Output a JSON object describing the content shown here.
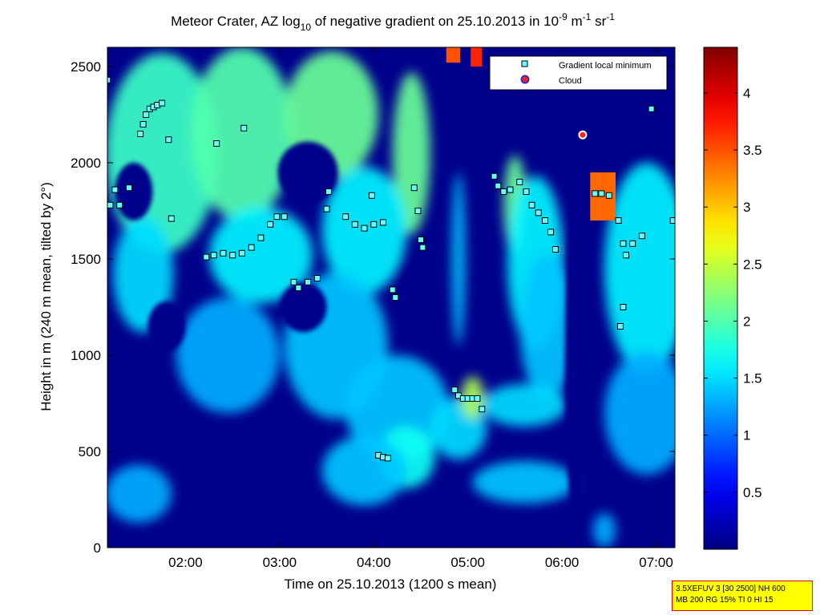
{
  "chart_data": {
    "type": "heatmap",
    "title": "Meteor Crater, AZ log10 of negative gradient on 25.10.2013 in 10^-9 m^-1 sr^-1",
    "title_parts": {
      "a": "Meteor Crater, AZ log",
      "sub": "10",
      "b": " of negative gradient on 25.10.2013 in 10",
      "sup1": "-9",
      "c": " m",
      "sup2": "-1",
      "d": " sr",
      "sup3": "-1"
    },
    "xlabel": "Time on 25.10.2013 (1200 s mean)",
    "ylabel": "Height in m (240 m mean, tilted by 2°)",
    "x_unit": "hour of day",
    "xlim": [
      1.17,
      7.2
    ],
    "ylim": [
      0,
      2600
    ],
    "x_ticks": [
      {
        "v": 2.0,
        "label": "02:00"
      },
      {
        "v": 3.0,
        "label": "03:00"
      },
      {
        "v": 4.0,
        "label": "04:00"
      },
      {
        "v": 5.0,
        "label": "05:00"
      },
      {
        "v": 6.0,
        "label": "06:00"
      },
      {
        "v": 7.0,
        "label": "07:00"
      }
    ],
    "y_ticks": [
      0,
      500,
      1000,
      1500,
      2000,
      2500
    ],
    "colorbar": {
      "range": [
        0,
        4.4
      ],
      "ticks": [
        0.5,
        1,
        1.5,
        2,
        2.5,
        3,
        3.5,
        4
      ],
      "colormap": "jet"
    },
    "background_value": 0.05,
    "field": [
      {
        "x": 1.75,
        "y": 2050,
        "rx": 0.6,
        "ry": 520,
        "v": 1.9
      },
      {
        "x": 2.6,
        "y": 2150,
        "rx": 0.55,
        "ry": 450,
        "v": 2.0
      },
      {
        "x": 3.55,
        "y": 2250,
        "rx": 0.5,
        "ry": 330,
        "v": 2.1
      },
      {
        "x": 4.4,
        "y": 2050,
        "rx": 0.2,
        "ry": 420,
        "v": 2.1
      },
      {
        "x": 1.55,
        "y": 1420,
        "rx": 0.32,
        "ry": 300,
        "v": 1.5
      },
      {
        "x": 2.8,
        "y": 1520,
        "rx": 0.55,
        "ry": 250,
        "v": 1.6
      },
      {
        "x": 3.9,
        "y": 1650,
        "rx": 0.45,
        "ry": 330,
        "v": 1.6
      },
      {
        "x": 2.45,
        "y": 1000,
        "rx": 0.55,
        "ry": 300,
        "v": 1.3
      },
      {
        "x": 3.6,
        "y": 1050,
        "rx": 0.55,
        "ry": 380,
        "v": 1.4
      },
      {
        "x": 4.25,
        "y": 720,
        "rx": 0.55,
        "ry": 280,
        "v": 1.4
      },
      {
        "x": 4.35,
        "y": 470,
        "rx": 0.3,
        "ry": 160,
        "v": 1.7
      },
      {
        "x": 4.9,
        "y": 620,
        "rx": 0.3,
        "ry": 160,
        "v": 1.5
      },
      {
        "x": 4.9,
        "y": 1500,
        "rx": 0.07,
        "ry": 450,
        "v": 1.4
      },
      {
        "x": 5.05,
        "y": 780,
        "rx": 0.12,
        "ry": 110,
        "v": 2.4
      },
      {
        "x": 5.5,
        "y": 1780,
        "rx": 0.12,
        "ry": 260,
        "v": 2.1
      },
      {
        "x": 5.72,
        "y": 1480,
        "rx": 0.3,
        "ry": 450,
        "v": 1.6
      },
      {
        "x": 5.85,
        "y": 1150,
        "rx": 0.3,
        "ry": 380,
        "v": 1.4
      },
      {
        "x": 5.6,
        "y": 740,
        "rx": 0.45,
        "ry": 110,
        "v": 1.5
      },
      {
        "x": 5.6,
        "y": 340,
        "rx": 0.55,
        "ry": 110,
        "v": 1.4
      },
      {
        "x": 6.9,
        "y": 1450,
        "rx": 0.45,
        "ry": 550,
        "v": 1.6
      },
      {
        "x": 6.9,
        "y": 700,
        "rx": 0.45,
        "ry": 320,
        "v": 1.3
      },
      {
        "x": 1.5,
        "y": 280,
        "rx": 0.35,
        "ry": 150,
        "v": 1.3
      },
      {
        "x": 6.45,
        "y": 90,
        "rx": 0.12,
        "ry": 90,
        "v": 1.3
      },
      {
        "x": 3.9,
        "y": 400,
        "rx": 0.45,
        "ry": 180,
        "v": 1.4
      }
    ],
    "holes": [
      {
        "x": 1.45,
        "y": 1850,
        "rx": 0.2,
        "ry": 150
      },
      {
        "x": 3.3,
        "y": 1950,
        "rx": 0.32,
        "ry": 160
      },
      {
        "x": 3.25,
        "y": 1250,
        "rx": 0.25,
        "ry": 130
      },
      {
        "x": 1.8,
        "y": 1150,
        "rx": 0.2,
        "ry": 130
      },
      {
        "x": 4.4,
        "y": 1300,
        "rx": 0.12,
        "ry": 170
      },
      {
        "x": 6.15,
        "y": 1000,
        "rx": 0.12,
        "ry": 900
      }
    ],
    "cloud_patches": [
      {
        "x0": 6.3,
        "x1": 6.57,
        "y0": 1700,
        "y1": 1950,
        "v": 3.4
      },
      {
        "x0": 4.77,
        "x1": 4.92,
        "y0": 2520,
        "y1": 2600,
        "v": 3.5
      },
      {
        "x0": 5.03,
        "x1": 5.15,
        "y0": 2500,
        "y1": 2600,
        "v": 3.7
      }
    ],
    "series": [
      {
        "name": "Gradient local minimum",
        "color": "#66ffff",
        "points": [
          [
            1.17,
            2430
          ],
          [
            1.2,
            1780
          ],
          [
            1.25,
            1860
          ],
          [
            1.3,
            1780
          ],
          [
            1.4,
            1870
          ],
          [
            1.52,
            2150
          ],
          [
            1.55,
            2200
          ],
          [
            1.58,
            2250
          ],
          [
            1.62,
            2280
          ],
          [
            1.66,
            2290
          ],
          [
            1.7,
            2300
          ],
          [
            1.75,
            2310
          ],
          [
            1.82,
            2120
          ],
          [
            1.85,
            1710
          ],
          [
            2.22,
            1510
          ],
          [
            2.3,
            1520
          ],
          [
            2.4,
            1530
          ],
          [
            2.5,
            1520
          ],
          [
            2.6,
            1530
          ],
          [
            2.7,
            1560
          ],
          [
            2.8,
            1610
          ],
          [
            2.9,
            1680
          ],
          [
            2.97,
            1720
          ],
          [
            3.05,
            1720
          ],
          [
            2.33,
            2100
          ],
          [
            2.62,
            2180
          ],
          [
            3.15,
            1380
          ],
          [
            3.2,
            1350
          ],
          [
            3.3,
            1380
          ],
          [
            3.4,
            1400
          ],
          [
            3.5,
            1760
          ],
          [
            3.52,
            1850
          ],
          [
            3.7,
            1720
          ],
          [
            3.8,
            1680
          ],
          [
            3.9,
            1660
          ],
          [
            4.0,
            1680
          ],
          [
            4.1,
            1690
          ],
          [
            4.2,
            1340
          ],
          [
            4.23,
            1300
          ],
          [
            3.98,
            1830
          ],
          [
            4.05,
            480
          ],
          [
            4.1,
            470
          ],
          [
            4.15,
            465
          ],
          [
            4.43,
            1870
          ],
          [
            4.47,
            1750
          ],
          [
            4.5,
            1600
          ],
          [
            4.52,
            1560
          ],
          [
            4.86,
            820
          ],
          [
            4.9,
            790
          ],
          [
            4.95,
            775
          ],
          [
            5.0,
            775
          ],
          [
            5.05,
            775
          ],
          [
            5.1,
            775
          ],
          [
            5.15,
            720
          ],
          [
            5.28,
            1930
          ],
          [
            5.32,
            1880
          ],
          [
            5.38,
            1850
          ],
          [
            5.45,
            1860
          ],
          [
            5.55,
            1900
          ],
          [
            5.62,
            1850
          ],
          [
            5.68,
            1780
          ],
          [
            5.75,
            1740
          ],
          [
            5.82,
            1700
          ],
          [
            5.88,
            1640
          ],
          [
            5.93,
            1550
          ],
          [
            6.35,
            1840
          ],
          [
            6.42,
            1840
          ],
          [
            6.5,
            1830
          ],
          [
            6.6,
            1700
          ],
          [
            6.65,
            1580
          ],
          [
            6.68,
            1520
          ],
          [
            6.75,
            1580
          ],
          [
            6.85,
            1620
          ],
          [
            6.95,
            2280
          ],
          [
            6.62,
            1150
          ],
          [
            6.65,
            1250
          ],
          [
            7.18,
            1700
          ]
        ]
      },
      {
        "name": "Cloud",
        "color": "#ff2020",
        "points": [
          [
            6.22,
            2145
          ]
        ]
      }
    ],
    "legend_position": "top-right"
  },
  "stamp": {
    "line1": "3.5XEFUV 3 [30 2500] NH 600",
    "line2": "MB 200 RG 15% TI 0 HI 15"
  }
}
